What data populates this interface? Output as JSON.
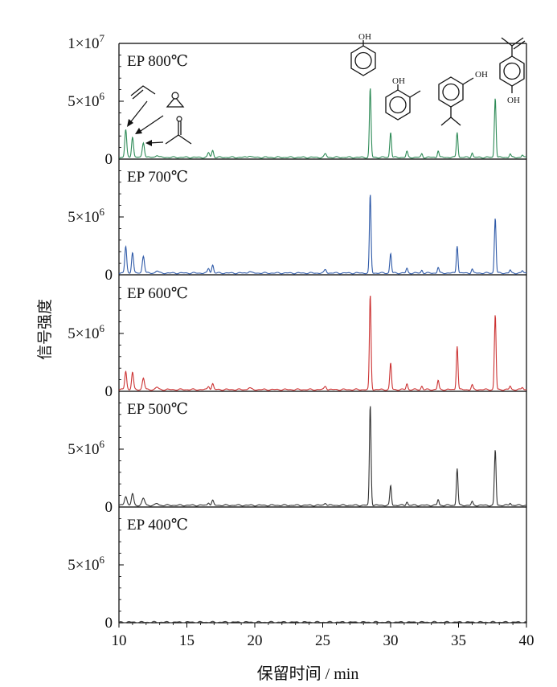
{
  "chart_data": {
    "type": "line",
    "xlabel": "保留时间 / min",
    "ylabel": "信号强度",
    "xlim": [
      10,
      40
    ],
    "x_ticks": [
      10,
      15,
      20,
      25,
      30,
      35,
      40
    ],
    "x_tick_labels": [
      "10",
      "15",
      "20",
      "25",
      "30",
      "35",
      "40"
    ],
    "grid": false,
    "legend": "none",
    "panels": [
      {
        "name": "EP 800℃",
        "label": "EP 800℃",
        "color": "#2e8b57",
        "ylim": [
          0,
          10000000
        ],
        "y_ticks": [
          {
            "value": 0,
            "label_main": "0",
            "label_exp": ""
          },
          {
            "value": 5000000,
            "label_main": "5×10",
            "label_exp": "6"
          },
          {
            "value": 10000000,
            "label_main": "1×10",
            "label_exp": "7"
          }
        ],
        "baseline": 150000,
        "peaks": [
          [
            10.5,
            2400000,
            0.07
          ],
          [
            11.0,
            1800000,
            0.07
          ],
          [
            11.8,
            1300000,
            0.08
          ],
          [
            12.8,
            200000,
            0.1
          ],
          [
            16.6,
            400000,
            0.07
          ],
          [
            16.9,
            600000,
            0.07
          ],
          [
            19.6,
            150000,
            0.1
          ],
          [
            25.2,
            300000,
            0.08
          ],
          [
            28.5,
            6000000,
            0.06
          ],
          [
            30.0,
            2200000,
            0.06
          ],
          [
            31.2,
            500000,
            0.06
          ],
          [
            32.3,
            300000,
            0.06
          ],
          [
            33.5,
            600000,
            0.06
          ],
          [
            34.9,
            2200000,
            0.06
          ],
          [
            36.0,
            400000,
            0.06
          ],
          [
            37.7,
            5200000,
            0.06
          ],
          [
            38.8,
            300000,
            0.06
          ],
          [
            39.7,
            200000,
            0.06
          ]
        ]
      },
      {
        "name": "EP 700℃",
        "label": "EP 700℃",
        "color": "#2f5aa8",
        "ylim": [
          0,
          10000000
        ],
        "y_ticks": [
          {
            "value": 0,
            "label_main": "0",
            "label_exp": ""
          },
          {
            "value": 5000000,
            "label_main": "5×10",
            "label_exp": "6"
          }
        ],
        "baseline": 150000,
        "peaks": [
          [
            10.5,
            2300000,
            0.07
          ],
          [
            11.0,
            1800000,
            0.07
          ],
          [
            11.8,
            1500000,
            0.08
          ],
          [
            12.8,
            200000,
            0.1
          ],
          [
            16.6,
            400000,
            0.07
          ],
          [
            16.9,
            700000,
            0.07
          ],
          [
            19.6,
            150000,
            0.1
          ],
          [
            25.2,
            300000,
            0.08
          ],
          [
            28.5,
            6800000,
            0.06
          ],
          [
            30.0,
            1700000,
            0.06
          ],
          [
            31.2,
            400000,
            0.06
          ],
          [
            32.3,
            250000,
            0.06
          ],
          [
            33.5,
            500000,
            0.06
          ],
          [
            34.9,
            2400000,
            0.06
          ],
          [
            36.0,
            350000,
            0.06
          ],
          [
            37.7,
            4800000,
            0.06
          ],
          [
            38.8,
            250000,
            0.06
          ],
          [
            39.7,
            200000,
            0.06
          ]
        ]
      },
      {
        "name": "EP 600℃",
        "label": "EP 600℃",
        "color": "#cc3333",
        "ylim": [
          0,
          10000000
        ],
        "y_ticks": [
          {
            "value": 0,
            "label_main": "0",
            "label_exp": ""
          },
          {
            "value": 5000000,
            "label_main": "5×10",
            "label_exp": "6"
          }
        ],
        "baseline": 150000,
        "peaks": [
          [
            10.5,
            1600000,
            0.07
          ],
          [
            11.0,
            1500000,
            0.07
          ],
          [
            11.8,
            1000000,
            0.08
          ],
          [
            12.8,
            200000,
            0.1
          ],
          [
            16.6,
            300000,
            0.07
          ],
          [
            16.9,
            500000,
            0.07
          ],
          [
            19.6,
            150000,
            0.1
          ],
          [
            25.2,
            300000,
            0.08
          ],
          [
            28.5,
            8200000,
            0.06
          ],
          [
            30.0,
            2300000,
            0.06
          ],
          [
            31.2,
            500000,
            0.06
          ],
          [
            32.3,
            300000,
            0.06
          ],
          [
            33.5,
            800000,
            0.06
          ],
          [
            34.9,
            3800000,
            0.06
          ],
          [
            36.0,
            400000,
            0.06
          ],
          [
            37.7,
            6500000,
            0.06
          ],
          [
            38.8,
            300000,
            0.06
          ],
          [
            39.7,
            200000,
            0.06
          ]
        ]
      },
      {
        "name": "EP 500℃",
        "label": "EP 500℃",
        "color": "#333333",
        "ylim": [
          0,
          10000000
        ],
        "y_ticks": [
          {
            "value": 0,
            "label_main": "0",
            "label_exp": ""
          },
          {
            "value": 5000000,
            "label_main": "5×10",
            "label_exp": "6"
          }
        ],
        "baseline": 150000,
        "peaks": [
          [
            10.5,
            800000,
            0.09
          ],
          [
            11.0,
            1000000,
            0.08
          ],
          [
            11.8,
            600000,
            0.1
          ],
          [
            12.8,
            150000,
            0.1
          ],
          [
            16.6,
            250000,
            0.07
          ],
          [
            16.9,
            400000,
            0.07
          ],
          [
            25.2,
            200000,
            0.08
          ],
          [
            28.5,
            8700000,
            0.06
          ],
          [
            30.0,
            1700000,
            0.06
          ],
          [
            31.2,
            300000,
            0.06
          ],
          [
            33.5,
            500000,
            0.06
          ],
          [
            34.9,
            3200000,
            0.06
          ],
          [
            36.0,
            300000,
            0.06
          ],
          [
            37.7,
            4800000,
            0.06
          ],
          [
            38.8,
            200000,
            0.06
          ]
        ]
      },
      {
        "name": "EP 400℃",
        "label": "EP 400℃",
        "color": "#444444",
        "ylim": [
          0,
          10000000
        ],
        "y_ticks": [
          {
            "value": 0,
            "label_main": "0",
            "label_exp": ""
          },
          {
            "value": 5000000,
            "label_main": "5×10",
            "label_exp": "6"
          }
        ],
        "baseline": 50000,
        "peaks": []
      }
    ]
  }
}
